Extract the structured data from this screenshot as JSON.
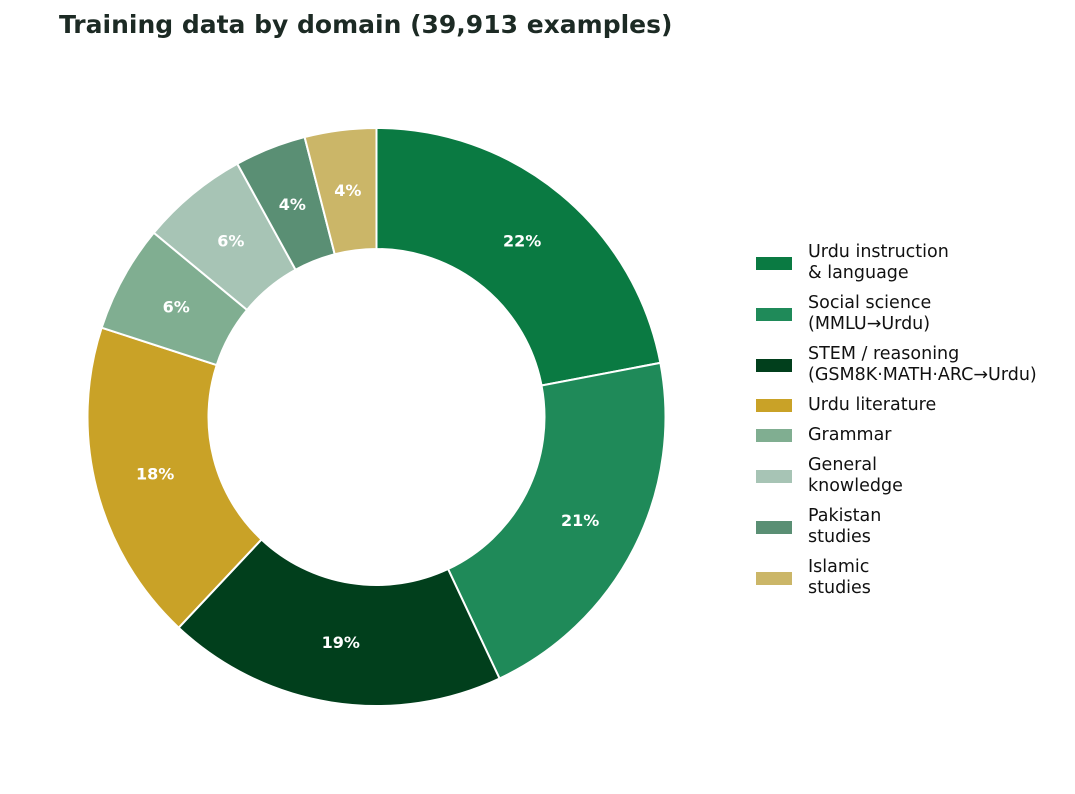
{
  "chart_data": {
    "type": "pie",
    "style": "donut",
    "title": "Training data by domain (39,913 examples)",
    "slice_order": "clockwise from top",
    "legend_position": "right",
    "slices": [
      {
        "label": "Urdu instruction & language",
        "legend_lines": [
          "Urdu instruction",
          "& language"
        ],
        "percent": 22,
        "display": "22%",
        "color": "#0a7a42"
      },
      {
        "label": "Social science (MMLU→Urdu)",
        "legend_lines": [
          "Social science",
          "(MMLU→Urdu)"
        ],
        "percent": 21,
        "display": "21%",
        "color": "#1f8a59"
      },
      {
        "label": "STEM / reasoning (GSM8K·MATH·ARC→Urdu)",
        "legend_lines": [
          "STEM / reasoning",
          "(GSM8K·MATH·ARC→Urdu)"
        ],
        "percent": 19,
        "display": "19%",
        "color": "#013f1c"
      },
      {
        "label": "Urdu literature",
        "legend_lines": [
          "Urdu literature"
        ],
        "percent": 18,
        "display": "18%",
        "color": "#c9a227"
      },
      {
        "label": "Grammar",
        "legend_lines": [
          "Grammar"
        ],
        "percent": 6,
        "display": "6%",
        "color": "#80ae91"
      },
      {
        "label": "General knowledge",
        "legend_lines": [
          "General",
          "knowledge"
        ],
        "percent": 6,
        "display": "6%",
        "color": "#a7c4b5"
      },
      {
        "label": "Pakistan studies",
        "legend_lines": [
          "Pakistan",
          "studies"
        ],
        "percent": 4,
        "display": "4%",
        "color": "#5a8f74"
      },
      {
        "label": "Islamic studies",
        "legend_lines": [
          "Islamic",
          "studies"
        ],
        "percent": 4,
        "display": "4%",
        "color": "#cbb668"
      }
    ]
  }
}
